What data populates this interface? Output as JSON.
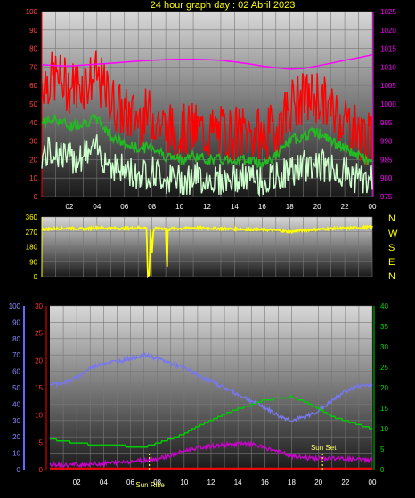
{
  "title": "24 hour graph day : 02 Abril 2023",
  "colors": {
    "background": "#000000",
    "title": "#ffff00",
    "wind_speed": "#ff0000",
    "wind_avg": "#22bb22",
    "wind_gust_low": "#ccffcc",
    "pressure": "#ff00ff",
    "direction": "#ffff00",
    "temperature": "#7777ee",
    "humidity_line": "#00cc00",
    "dew_line": "#cc00cc",
    "sun_marker": "#ffff00"
  },
  "chart_data": [
    {
      "id": "wind_pressure",
      "type": "line",
      "x_ticks": [
        "02",
        "04",
        "06",
        "08",
        "10",
        "12",
        "14",
        "16",
        "18",
        "20",
        "22",
        "00"
      ],
      "y_left": {
        "min": 0,
        "max": 100,
        "ticks": [
          "0",
          "10",
          "20",
          "30",
          "40",
          "50",
          "60",
          "70",
          "80",
          "90",
          "100"
        ]
      },
      "y_right": {
        "min": 975,
        "max": 1025,
        "ticks": [
          "975",
          "980",
          "985",
          "990",
          "995",
          "1000",
          "1005",
          "1010",
          "1015",
          "1020",
          "1025"
        ]
      },
      "grid": true,
      "series": [
        {
          "key": "wind_max",
          "color": "#ff0000",
          "x": [
            0,
            1,
            2,
            3,
            4,
            5,
            6,
            7,
            8,
            9,
            10,
            11,
            12,
            13,
            14,
            15,
            16,
            17,
            18,
            19,
            20,
            21,
            22,
            23,
            24
          ],
          "values": [
            58,
            60,
            55,
            57,
            60,
            48,
            40,
            38,
            40,
            32,
            30,
            32,
            30,
            30,
            30,
            30,
            28,
            32,
            45,
            48,
            50,
            42,
            38,
            30,
            25
          ]
        },
        {
          "key": "wind_avg",
          "color": "#22bb22",
          "x": [
            0,
            1,
            2,
            3,
            4,
            5,
            6,
            7,
            8,
            9,
            10,
            11,
            12,
            13,
            14,
            15,
            16,
            17,
            18,
            19,
            20,
            21,
            22,
            23,
            24
          ],
          "values": [
            40,
            42,
            38,
            40,
            42,
            33,
            28,
            26,
            27,
            22,
            20,
            22,
            20,
            20,
            20,
            20,
            18,
            22,
            30,
            33,
            35,
            30,
            26,
            22,
            18
          ]
        },
        {
          "key": "wind_low",
          "color": "#ccffcc",
          "x": [
            0,
            1,
            2,
            3,
            4,
            5,
            6,
            7,
            8,
            9,
            10,
            11,
            12,
            13,
            14,
            15,
            16,
            17,
            18,
            19,
            20,
            21,
            22,
            23,
            24
          ],
          "values": [
            22,
            25,
            20,
            23,
            25,
            18,
            14,
            12,
            14,
            10,
            9,
            10,
            10,
            9,
            9,
            10,
            8,
            10,
            14,
            16,
            18,
            15,
            13,
            10,
            8
          ]
        },
        {
          "key": "pressure",
          "color": "#ff00ff",
          "axis": "right",
          "x": [
            0,
            1,
            2,
            3,
            4,
            5,
            6,
            7,
            8,
            9,
            10,
            11,
            12,
            13,
            14,
            15,
            16,
            17,
            18,
            19,
            20,
            21,
            22,
            23,
            24
          ],
          "values": [
            1010.6,
            1010.4,
            1010.3,
            1010.5,
            1010.8,
            1011.0,
            1011.3,
            1011.6,
            1011.8,
            1012.0,
            1012.1,
            1012.1,
            1012.0,
            1011.8,
            1011.4,
            1010.9,
            1010.3,
            1009.8,
            1009.4,
            1009.6,
            1010.3,
            1011.0,
            1011.8,
            1012.5,
            1013.3
          ]
        }
      ]
    },
    {
      "id": "wind_direction",
      "type": "line",
      "y_left": {
        "min": 0,
        "max": 360,
        "ticks": [
          "0",
          "90",
          "180",
          "270",
          "360"
        ]
      },
      "cardinals": [
        "N",
        "W",
        "S",
        "E",
        "N"
      ],
      "grid": true,
      "series": [
        {
          "key": "direction",
          "color": "#ffff00",
          "x": [
            0,
            1,
            2,
            3,
            4,
            5,
            6,
            7,
            7.6,
            7.7,
            7.8,
            7.9,
            8.0,
            8.1,
            8.2,
            8.4,
            9.0,
            9.05,
            9.1,
            9.15,
            9.3,
            10,
            11,
            12,
            13,
            14,
            15,
            16,
            17,
            18,
            19,
            20,
            21,
            22,
            23,
            24
          ],
          "values": [
            285,
            290,
            292,
            288,
            295,
            292,
            290,
            295,
            295,
            0,
            10,
            280,
            140,
            270,
            290,
            292,
            290,
            150,
            60,
            270,
            292,
            290,
            295,
            292,
            290,
            288,
            285,
            283,
            280,
            270,
            280,
            285,
            290,
            292,
            295,
            300
          ]
        }
      ]
    },
    {
      "id": "temp_humidity",
      "type": "line",
      "x_ticks": [
        "02",
        "04",
        "06",
        "08",
        "10",
        "12",
        "14",
        "16",
        "18",
        "20",
        "22",
        "00"
      ],
      "y_outer": {
        "min": 0,
        "max": 100,
        "ticks": [
          "0",
          "10",
          "20",
          "30",
          "40",
          "50",
          "60",
          "70",
          "80",
          "90",
          "100"
        ]
      },
      "y_inner": {
        "min": 0,
        "max": 30,
        "ticks": [
          "0",
          "5",
          "10",
          "15",
          "20",
          "25",
          "30"
        ]
      },
      "y_right": {
        "min": 0,
        "max": 40,
        "ticks": [
          "0",
          "5",
          "10",
          "15",
          "20",
          "25",
          "30",
          "35",
          "40"
        ]
      },
      "grid": true,
      "annotations": [
        {
          "label": "Sun Rise",
          "x": 7.4
        },
        {
          "label": "Sun Set",
          "x": 20.3
        }
      ],
      "series": [
        {
          "key": "temperature",
          "color": "#7777ee",
          "x": [
            0,
            1,
            2,
            3,
            4,
            5,
            6,
            7,
            8,
            9,
            10,
            11,
            12,
            13,
            14,
            15,
            16,
            17,
            18,
            19,
            20,
            21,
            22,
            23,
            24
          ],
          "values": [
            52,
            53,
            56,
            62,
            65,
            66,
            68,
            70,
            68,
            65,
            62,
            58,
            54,
            50,
            46,
            42,
            38,
            33,
            30,
            32,
            36,
            42,
            48,
            51,
            52
          ]
        },
        {
          "key": "humidity",
          "color": "#00cc00",
          "x": [
            0,
            1,
            2,
            3,
            4,
            5,
            6,
            7,
            8,
            9,
            10,
            11,
            12,
            13,
            14,
            15,
            16,
            17,
            18,
            19,
            20,
            21,
            22,
            23,
            24
          ],
          "values": [
            7.5,
            7,
            6.5,
            6.2,
            6,
            6,
            5.6,
            5.5,
            6.4,
            7.5,
            8.7,
            10.5,
            12,
            13.5,
            14.8,
            15.8,
            17,
            17.4,
            17.8,
            16.6,
            15,
            13,
            12,
            11,
            10
          ]
        },
        {
          "key": "dew",
          "color": "#cc00cc",
          "x": [
            0,
            1,
            2,
            3,
            4,
            5,
            6,
            7,
            8,
            9,
            10,
            11,
            12,
            13,
            14,
            15,
            16,
            17,
            18,
            19,
            20,
            21,
            22,
            23,
            24
          ],
          "values": [
            1,
            0.8,
            0.9,
            1.0,
            1.1,
            1.3,
            1.5,
            1.7,
            2.0,
            2.6,
            3.4,
            4.0,
            4.3,
            4.5,
            4.7,
            4.6,
            4.0,
            3.3,
            2.4,
            2.2,
            2.0,
            2.1,
            2.0,
            1.8,
            1.8
          ]
        },
        {
          "key": "zero",
          "color": "#ff0000",
          "x": [
            0,
            24
          ],
          "values": [
            0.2,
            0.2
          ]
        }
      ]
    }
  ]
}
